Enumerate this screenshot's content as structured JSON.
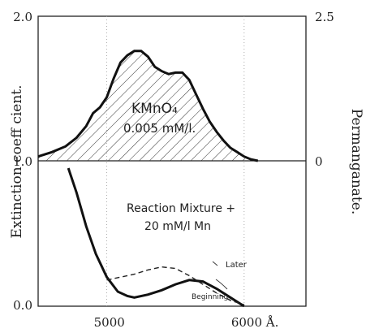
{
  "chart_data": [
    {
      "panel": "upper",
      "type": "area",
      "annotation": "KMnO₄\n0.005 mM/l.",
      "x": [
        4500,
        4600,
        4700,
        4780,
        4850,
        4900,
        4950,
        5000,
        5050,
        5100,
        5150,
        5200,
        5250,
        5300,
        5350,
        5400,
        5450,
        5500,
        5550,
        5600,
        5650,
        5700,
        5750,
        5800,
        5850,
        5900,
        5950,
        6000,
        6050,
        6100
      ],
      "y": [
        1.03,
        1.06,
        1.1,
        1.16,
        1.24,
        1.33,
        1.37,
        1.44,
        1.57,
        1.68,
        1.73,
        1.76,
        1.76,
        1.72,
        1.65,
        1.62,
        1.6,
        1.61,
        1.61,
        1.56,
        1.46,
        1.36,
        1.27,
        1.2,
        1.14,
        1.09,
        1.06,
        1.03,
        1.01,
        1.0
      ],
      "hatched_fill": true,
      "ylim_left": [
        1.0,
        2.0
      ],
      "ylim_right": [
        0,
        2.5
      ],
      "yticks_right": [
        "2.5",
        "0"
      ],
      "ylabel_right": "Permanganate."
    },
    {
      "panel": "lower",
      "type": "line",
      "annotation": "Reaction Mixture +\n20 mM/l Mn",
      "ylim": [
        0.0,
        1.0
      ],
      "series": [
        {
          "name": "Beginning",
          "style": "solid",
          "x": [
            4720,
            4780,
            4850,
            4920,
            5000,
            5080,
            5150,
            5200,
            5300,
            5400,
            5500,
            5600,
            5700,
            5800,
            5900,
            6000
          ],
          "y": [
            0.95,
            0.78,
            0.55,
            0.36,
            0.2,
            0.1,
            0.07,
            0.06,
            0.08,
            0.11,
            0.15,
            0.18,
            0.17,
            0.12,
            0.06,
            0.0
          ]
        },
        {
          "name": "Later",
          "style": "dashed",
          "x": [
            5000,
            5100,
            5200,
            5300,
            5400,
            5500,
            5600,
            5700,
            5800,
            5900,
            6000
          ],
          "y": [
            0.18,
            0.2,
            0.22,
            0.25,
            0.27,
            0.26,
            0.21,
            0.15,
            0.09,
            0.04,
            0.01
          ]
        }
      ],
      "curve_labels": [
        "Later",
        "Beginning"
      ]
    }
  ],
  "axes": {
    "xlim": [
      4500,
      6450
    ],
    "xticks": [
      5000,
      6000
    ],
    "xtick_labels": [
      "5000",
      "6000 Å."
    ],
    "ylim": [
      0.0,
      2.0
    ],
    "yticks_left": [
      "2.0",
      "1.0",
      "0.0"
    ],
    "ylabel_left": "Extinction coeff cient.",
    "gridlines_x": [
      5000,
      6000
    ]
  }
}
